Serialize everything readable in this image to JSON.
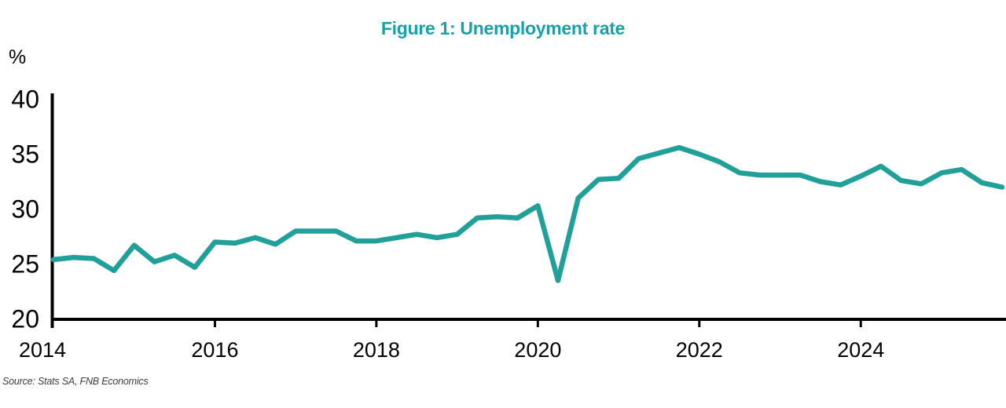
{
  "page": {
    "background": "#ffffff"
  },
  "chart_data": {
    "type": "line",
    "title": "Figure 1: Unemployment rate",
    "title_color": "#17A2A7",
    "y_unit": "%",
    "source": "Source: Stats SA, FNB Economics",
    "line_color": "#21A09A",
    "axis_color": "#000000",
    "label_color": "#000000",
    "grid": false,
    "legend": "none",
    "ylim": [
      20,
      40
    ],
    "y_ticks": [
      20,
      25,
      30,
      35,
      40
    ],
    "x_tick_years": [
      2014,
      2016,
      2018,
      2020,
      2022,
      2024
    ],
    "frequency": "quarterly",
    "x": [
      "2014Q1",
      "2014Q2",
      "2014Q3",
      "2014Q4",
      "2015Q1",
      "2015Q2",
      "2015Q3",
      "2015Q4",
      "2016Q1",
      "2016Q2",
      "2016Q3",
      "2016Q4",
      "2017Q1",
      "2017Q2",
      "2017Q3",
      "2017Q4",
      "2018Q1",
      "2018Q2",
      "2018Q3",
      "2018Q4",
      "2019Q1",
      "2019Q2",
      "2019Q3",
      "2019Q4",
      "2020Q1",
      "2020Q2",
      "2020Q3",
      "2020Q4",
      "2021Q1",
      "2021Q2",
      "2021Q3",
      "2021Q4",
      "2022Q1",
      "2022Q2",
      "2022Q3",
      "2022Q4",
      "2023Q1",
      "2023Q2",
      "2023Q3",
      "2023Q4",
      "2024Q1",
      "2024Q2",
      "2024Q3",
      "2024Q4",
      "2025Q1",
      "2025Q2",
      "2025Q3",
      "2025Q4"
    ],
    "series": [
      {
        "name": "Unemployment rate (%)",
        "values": [
          25.4,
          25.6,
          25.5,
          24.4,
          26.7,
          25.2,
          25.8,
          24.7,
          27.0,
          26.9,
          27.4,
          26.8,
          28.0,
          28.0,
          28.0,
          27.1,
          27.1,
          27.4,
          27.7,
          27.4,
          27.7,
          29.2,
          29.3,
          29.2,
          30.3,
          23.5,
          31.0,
          32.7,
          32.8,
          34.6,
          35.1,
          35.6,
          35.0,
          34.3,
          33.3,
          33.1,
          33.1,
          33.1,
          32.5,
          32.2,
          33.0,
          33.9,
          32.6,
          32.3,
          33.3,
          33.6,
          32.4,
          32.0
        ]
      }
    ]
  }
}
